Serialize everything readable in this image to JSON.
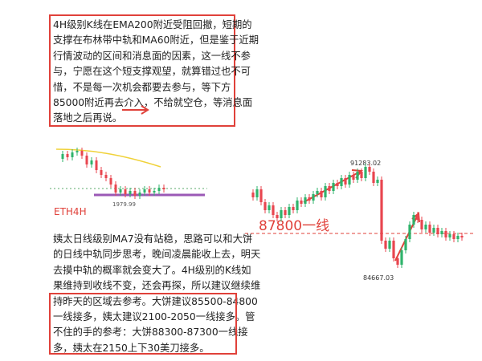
{
  "top_note": {
    "lines": [
      "4H级别K线在EMA200附近受阻回撤，短期的",
      "支撑在布林带中轨和MA60附近，但是鉴于近期",
      "行情波动的区间和消息面的因素，这一线不参",
      "与，宁愿在这个短支撑观望，就算错过也不可",
      "惜，不是每一次机会都要去参与，等下方",
      "85000附近再去介入，不给就空仓，等消息面",
      "落地之后再说。"
    ]
  },
  "eth_chart": {
    "low_label": "1979.99",
    "title": "ETH4H"
  },
  "btc_chart": {
    "level_label": "87800一线",
    "high_label": "91283.02",
    "low_label": "84667.03"
  },
  "bottom_note": {
    "lines": [
      "姨太日线级别MA7没有站稳，思路可以和大饼",
      "的日线中轨同步思考，晚间凌晨能收上去，明天",
      "去摸中轨的概率就会变大了。4H级别的K线如",
      "果维持到收线不变，还会再探，所以建议继续维",
      "持昨天的区域去参考。大饼建议85500-84800",
      "一线接多，姨太建议2100-2050一线接多。管",
      "不住的手的参考：大饼88300-87300一线接",
      "多，姨太在2150上下30美刀接多。"
    ]
  }
}
